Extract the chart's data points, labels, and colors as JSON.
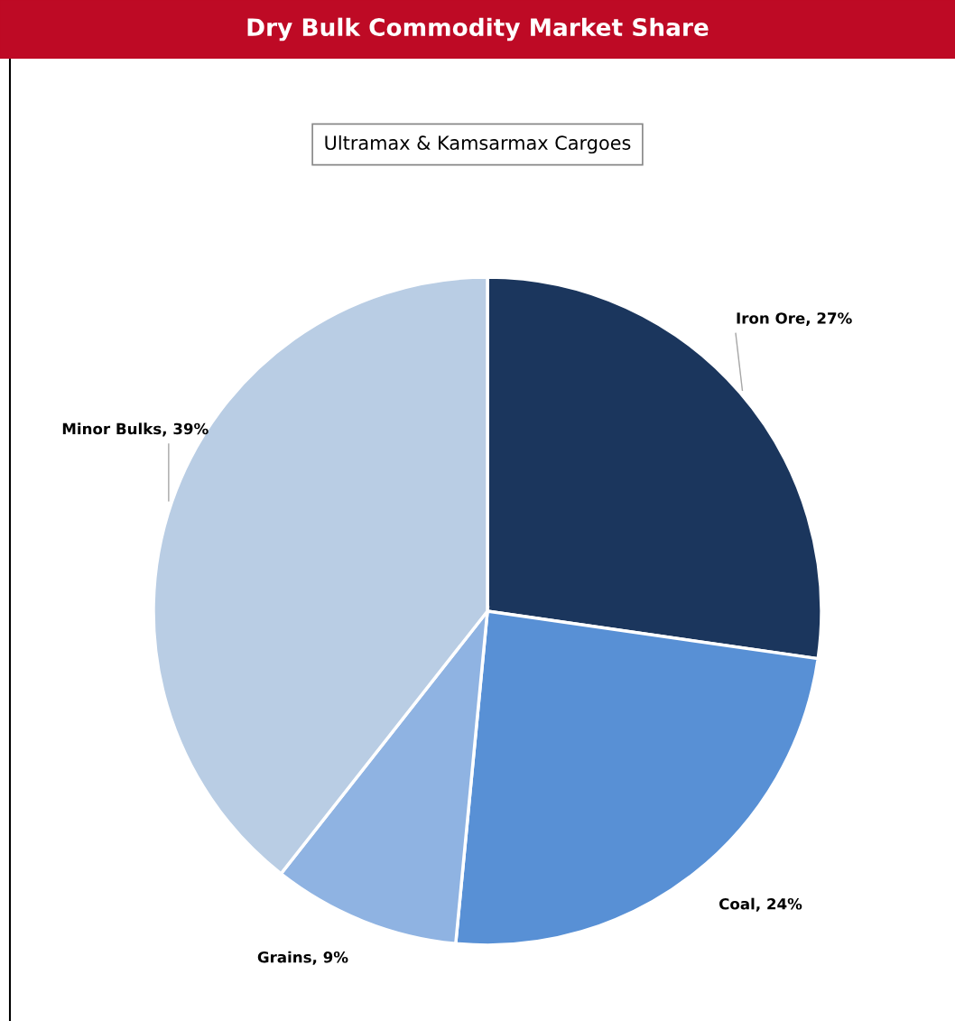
{
  "chart_data": {
    "type": "pie",
    "title": "Dry Bulk Commodity Market Share",
    "subtitle": "Ultramax & Kamsarmax Cargoes",
    "categories": [
      "Iron Ore",
      "Coal",
      "Grains",
      "Minor Bulks"
    ],
    "values": [
      27,
      24,
      9,
      39
    ],
    "colors": [
      "#1b365d",
      "#5890d5",
      "#8fb3e2",
      "#b9cde4"
    ],
    "value_labels": [
      "27%",
      "24%",
      "9%",
      "39%"
    ],
    "legend": false
  }
}
